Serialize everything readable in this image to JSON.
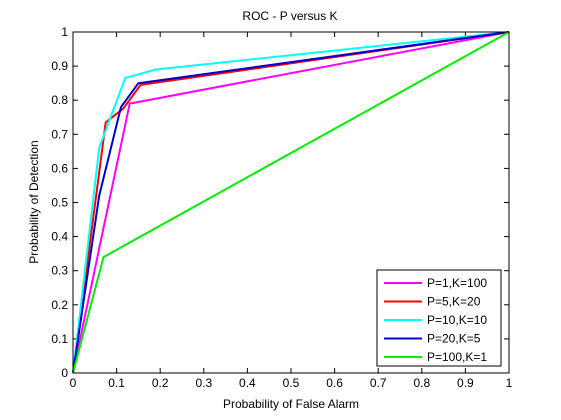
{
  "chart_data": {
    "type": "line",
    "title": "ROC - P versus K",
    "xlabel": "Probability of False Alarm",
    "ylabel": "Probability of Detection",
    "xlim": [
      0,
      1
    ],
    "ylim": [
      0,
      1
    ],
    "xticks": [
      "0",
      "0.1",
      "0.2",
      "0.3",
      "0.4",
      "0.5",
      "0.6",
      "0.7",
      "0.8",
      "0.9",
      "1"
    ],
    "yticks": [
      "0",
      "0.1",
      "0.2",
      "0.3",
      "0.4",
      "0.5",
      "0.6",
      "0.7",
      "0.8",
      "0.9",
      "1"
    ],
    "grid": false,
    "legend_position": "bottom-right",
    "series": [
      {
        "name": "P=1,K=100",
        "color": "#ff00ff",
        "x": [
          0,
          0.13,
          1
        ],
        "y": [
          0,
          0.79,
          1
        ]
      },
      {
        "name": "P=5,K=20",
        "color": "#ff0000",
        "x": [
          0,
          0.075,
          0.115,
          0.155,
          1
        ],
        "y": [
          0,
          0.735,
          0.775,
          0.845,
          1
        ]
      },
      {
        "name": "P=10,K=10",
        "color": "#00ffff",
        "x": [
          0,
          0.06,
          0.12,
          0.19,
          1
        ],
        "y": [
          0,
          0.66,
          0.865,
          0.89,
          1
        ]
      },
      {
        "name": "P=20,K=5",
        "color": "#0000cc",
        "x": [
          0,
          0.06,
          0.11,
          0.15,
          1
        ],
        "y": [
          0,
          0.52,
          0.78,
          0.85,
          1
        ]
      },
      {
        "name": "P=100,K=1",
        "color": "#00ee00",
        "x": [
          0,
          0.07,
          1
        ],
        "y": [
          0,
          0.34,
          1
        ]
      }
    ]
  }
}
